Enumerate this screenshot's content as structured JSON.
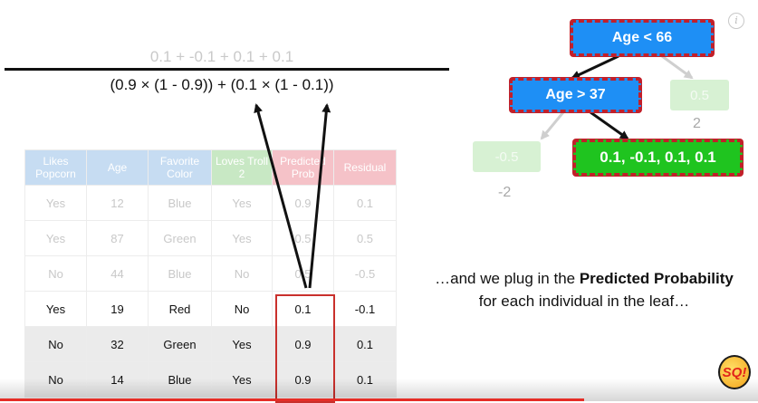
{
  "formula": {
    "numerator": "0.1 + -0.1 + 0.1 + 0.1",
    "denominator": "(0.9 × (1 - 0.9)) + (0.1 × (1 - 0.1))"
  },
  "table": {
    "headers": [
      "Likes Popcorn",
      "Age",
      "Favorite Color",
      "Loves Troll 2",
      "Predicted Prob",
      "Residual"
    ],
    "rows": [
      [
        "Yes",
        "12",
        "Blue",
        "Yes",
        "0.9",
        "0.1"
      ],
      [
        "Yes",
        "87",
        "Green",
        "Yes",
        "0.5",
        "0.5"
      ],
      [
        "No",
        "44",
        "Blue",
        "No",
        "0.5",
        "-0.5"
      ],
      [
        "Yes",
        "19",
        "Red",
        "No",
        "0.1",
        "-0.1"
      ],
      [
        "No",
        "32",
        "Green",
        "Yes",
        "0.9",
        "0.1"
      ],
      [
        "No",
        "14",
        "Blue",
        "Yes",
        "0.9",
        "0.1"
      ]
    ]
  },
  "tree": {
    "root": "Age < 66",
    "split": "Age > 37",
    "leaf_right_top": "0.5",
    "leaf_right_top_value": "2",
    "leaf_left": "-0.5",
    "leaf_left_value": "-2",
    "leaf_highlight": "0.1, -0.1, 0.1, 0.1"
  },
  "caption": {
    "part1": "…and we plug in the ",
    "bold": "Predicted Probability",
    "part2": " for each individual in the leaf…"
  },
  "info_icon_glyph": "i",
  "logo_text": "SQ!",
  "colors": {
    "node_blue": "#1e8ff5",
    "node_green": "#1fc41f",
    "node_border": "#c2202a",
    "highlight": "#c9302c",
    "progress": "#e52d27"
  }
}
